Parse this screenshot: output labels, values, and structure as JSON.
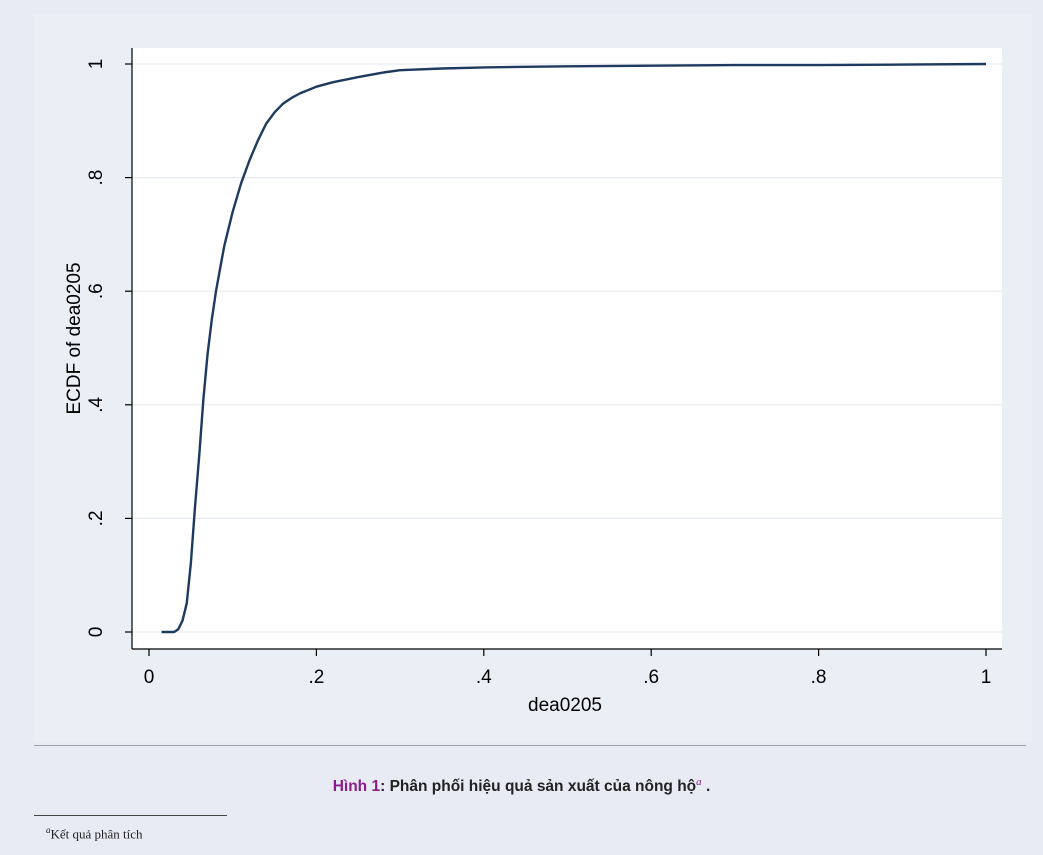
{
  "chart_data": {
    "type": "line",
    "xlabel": "dea0205",
    "ylabel": "ECDF of dea0205",
    "xlim": [
      0,
      1
    ],
    "ylim": [
      0,
      1
    ],
    "x_ticks": [
      0,
      0.2,
      0.4,
      0.6,
      0.8,
      1
    ],
    "x_tick_labels": [
      "0",
      ".2",
      ".4",
      ".6",
      ".8",
      "1"
    ],
    "y_ticks": [
      0,
      0.2,
      0.4,
      0.6,
      0.8,
      1
    ],
    "y_tick_labels": [
      "0",
      ".2",
      ".4",
      ".6",
      ".8",
      "1"
    ],
    "grid": true,
    "series": [
      {
        "color": "#1e3a5f",
        "points": [
          [
            0.015,
            0.0
          ],
          [
            0.03,
            0.0
          ],
          [
            0.035,
            0.005
          ],
          [
            0.04,
            0.02
          ],
          [
            0.045,
            0.05
          ],
          [
            0.05,
            0.12
          ],
          [
            0.055,
            0.22
          ],
          [
            0.06,
            0.31
          ],
          [
            0.065,
            0.41
          ],
          [
            0.07,
            0.49
          ],
          [
            0.075,
            0.55
          ],
          [
            0.08,
            0.6
          ],
          [
            0.085,
            0.64
          ],
          [
            0.09,
            0.68
          ],
          [
            0.1,
            0.74
          ],
          [
            0.11,
            0.79
          ],
          [
            0.12,
            0.83
          ],
          [
            0.13,
            0.865
          ],
          [
            0.14,
            0.895
          ],
          [
            0.15,
            0.915
          ],
          [
            0.16,
            0.93
          ],
          [
            0.17,
            0.94
          ],
          [
            0.18,
            0.948
          ],
          [
            0.2,
            0.96
          ],
          [
            0.22,
            0.968
          ],
          [
            0.25,
            0.977
          ],
          [
            0.28,
            0.985
          ],
          [
            0.3,
            0.989
          ],
          [
            0.35,
            0.992
          ],
          [
            0.4,
            0.994
          ],
          [
            0.45,
            0.995
          ],
          [
            0.5,
            0.996
          ],
          [
            0.6,
            0.997
          ],
          [
            0.7,
            0.998
          ],
          [
            0.8,
            0.998
          ],
          [
            0.9,
            0.999
          ],
          [
            1.0,
            1.0
          ]
        ]
      }
    ]
  },
  "caption": {
    "label": "Hình 1",
    "separator": ": ",
    "text": "Phân phối hiệu quả sản xuất của nông hộ",
    "note_mark": "a",
    "tail": " ."
  },
  "footnote": {
    "mark": "a",
    "text": "Kết quả phân tích"
  },
  "colors": {
    "line": "#1e3a5f",
    "plot_background": "#ffffff",
    "outer_background": "#eaeef5",
    "gridline": "#e6ecf2",
    "caption_label": "#8b1a8b"
  }
}
